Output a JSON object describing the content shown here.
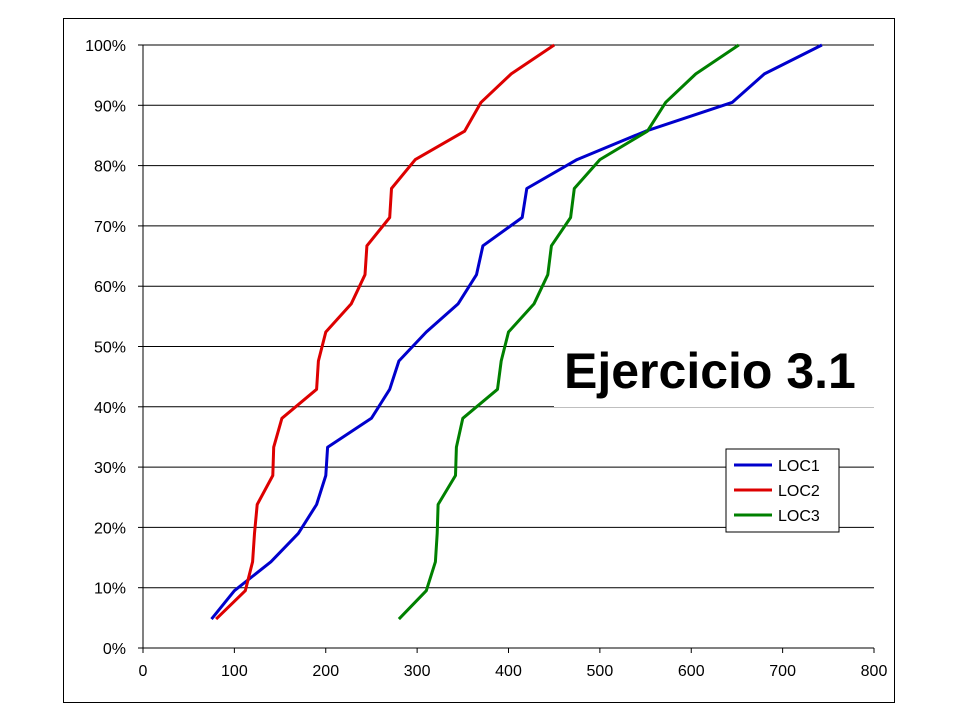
{
  "chart_data": {
    "type": "line",
    "title": "Ejercicio 3.1",
    "xlabel": "",
    "ylabel": "",
    "xlim": [
      0,
      800
    ],
    "ylim": [
      0,
      100
    ],
    "x_ticks": [
      0,
      100,
      200,
      300,
      400,
      500,
      600,
      700,
      800
    ],
    "y_ticks": [
      {
        "value": 0,
        "label": "0%"
      },
      {
        "value": 10,
        "label": "10%"
      },
      {
        "value": 20,
        "label": "20%"
      },
      {
        "value": 30,
        "label": "30%"
      },
      {
        "value": 40,
        "label": "40%"
      },
      {
        "value": 50,
        "label": "50%"
      },
      {
        "value": 60,
        "label": "60%"
      },
      {
        "value": 70,
        "label": "70%"
      },
      {
        "value": 80,
        "label": "80%"
      },
      {
        "value": 90,
        "label": "90%"
      },
      {
        "value": 100,
        "label": "100%"
      }
    ],
    "grid": "horizontal",
    "legend_position": "bottom-right",
    "series": [
      {
        "name": "LOC1",
        "color": "#0000cc",
        "points": [
          [
            75,
            4.8
          ],
          [
            100,
            9.5
          ],
          [
            140,
            14.3
          ],
          [
            170,
            19
          ],
          [
            190,
            23.8
          ],
          [
            200,
            28.6
          ],
          [
            202,
            33.3
          ],
          [
            250,
            38.1
          ],
          [
            270,
            42.9
          ],
          [
            280,
            47.6
          ],
          [
            310,
            52.4
          ],
          [
            345,
            57.1
          ],
          [
            365,
            61.9
          ],
          [
            372,
            66.7
          ],
          [
            415,
            71.4
          ],
          [
            420,
            76.2
          ],
          [
            475,
            81
          ],
          [
            550,
            85.7
          ],
          [
            645,
            90.5
          ],
          [
            680,
            95.2
          ],
          [
            743,
            100
          ]
        ]
      },
      {
        "name": "LOC2",
        "color": "#dd0000",
        "points": [
          [
            80,
            4.8
          ],
          [
            112,
            9.5
          ],
          [
            120,
            14.3
          ],
          [
            122,
            19
          ],
          [
            125,
            23.8
          ],
          [
            142,
            28.6
          ],
          [
            143,
            33.3
          ],
          [
            152,
            38.1
          ],
          [
            190,
            42.9
          ],
          [
            192,
            47.6
          ],
          [
            200,
            52.4
          ],
          [
            228,
            57.1
          ],
          [
            243,
            61.9
          ],
          [
            245,
            66.7
          ],
          [
            270,
            71.4
          ],
          [
            272,
            76.2
          ],
          [
            298,
            81
          ],
          [
            352,
            85.7
          ],
          [
            370,
            90.5
          ],
          [
            403,
            95.2
          ],
          [
            450,
            100
          ]
        ]
      },
      {
        "name": "LOC3",
        "color": "#008000",
        "points": [
          [
            280,
            4.8
          ],
          [
            310,
            9.5
          ],
          [
            320,
            14.3
          ],
          [
            322,
            19
          ],
          [
            323,
            23.8
          ],
          [
            342,
            28.6
          ],
          [
            343,
            33.3
          ],
          [
            350,
            38.1
          ],
          [
            388,
            42.9
          ],
          [
            392,
            47.6
          ],
          [
            400,
            52.4
          ],
          [
            428,
            57.1
          ],
          [
            443,
            61.9
          ],
          [
            447,
            66.7
          ],
          [
            468,
            71.4
          ],
          [
            472,
            76.2
          ],
          [
            500,
            81
          ],
          [
            552,
            85.7
          ],
          [
            572,
            90.5
          ],
          [
            605,
            95.2
          ],
          [
            652,
            100
          ]
        ]
      }
    ]
  }
}
